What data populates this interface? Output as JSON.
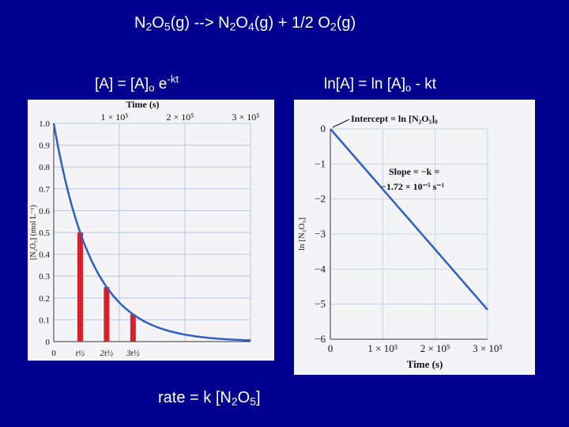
{
  "header": {
    "lhs": [
      "N",
      "2",
      "O",
      "5",
      "(g) --> N",
      "2",
      "O",
      "4",
      "(g) + 1/2 O",
      "2",
      "(g)"
    ]
  },
  "formulas": {
    "left": [
      "[A] = [A]",
      "o",
      " e",
      "-kt"
    ],
    "right": [
      "ln[A] = ln [A]",
      "o",
      " - kt"
    ],
    "bottom": [
      "rate = k [N",
      "2",
      "O",
      "5",
      "]"
    ]
  },
  "chart_data": [
    {
      "type": "line",
      "top_axis_label": "Time (s)",
      "top_ticks": [
        {
          "value": 100000,
          "label": "1 × 10⁵"
        },
        {
          "value": 200000,
          "label": "2 × 10⁵"
        },
        {
          "value": 300000,
          "label": "3 × 10⁵"
        }
      ],
      "ylabel": "[N₂O₅] (mol L⁻¹)",
      "ylim": [
        0,
        1.0
      ],
      "yticks": [
        {
          "value": 0,
          "label": "0"
        },
        {
          "value": 0.1,
          "label": "0.1"
        },
        {
          "value": 0.2,
          "label": "0.2"
        },
        {
          "value": 0.3,
          "label": "0.3"
        },
        {
          "value": 0.4,
          "label": "0.4"
        },
        {
          "value": 0.5,
          "label": "0.5"
        },
        {
          "value": 0.6,
          "label": "0.6"
        },
        {
          "value": 0.7,
          "label": "0.7"
        },
        {
          "value": 0.8,
          "label": "0.8"
        },
        {
          "value": 0.9,
          "label": "0.9"
        },
        {
          "value": 1.0,
          "label": "1.0"
        }
      ],
      "xlim": [
        0,
        300000
      ],
      "bottom_ticks": [
        {
          "value": 0,
          "label": "0"
        },
        {
          "value": 40300,
          "label": "t½"
        },
        {
          "value": 80600,
          "label": "2t½"
        },
        {
          "value": 120900,
          "label": "3t½"
        }
      ],
      "curve": {
        "a0": 1.0,
        "k": 1.72e-05,
        "color": "#2f5fc0"
      },
      "bars": [
        {
          "x": 40300,
          "value": 0.5
        },
        {
          "x": 80600,
          "value": 0.25
        },
        {
          "x": 120900,
          "value": 0.125
        }
      ],
      "bar_color": "#d8202a",
      "grid": true
    },
    {
      "type": "line",
      "xlabel": "Time (s)",
      "ylabel": "ln [N₂O₅]",
      "xlim": [
        0,
        300000
      ],
      "ylim": [
        -6,
        0
      ],
      "xticks": [
        {
          "value": 0,
          "label": "0"
        },
        {
          "value": 100000,
          "label": "1 × 10⁵"
        },
        {
          "value": 200000,
          "label": "2 × 10⁵"
        },
        {
          "value": 300000,
          "label": "3 × 10⁵"
        }
      ],
      "yticks": [
        {
          "value": 0,
          "label": "0"
        },
        {
          "value": -1,
          "label": "−1"
        },
        {
          "value": -2,
          "label": "−2"
        },
        {
          "value": -3,
          "label": "−3"
        },
        {
          "value": -4,
          "label": "−4"
        },
        {
          "value": -5,
          "label": "−5"
        },
        {
          "value": -6,
          "label": "−6"
        }
      ],
      "line": {
        "intercept": 0,
        "slope": -1.72e-05,
        "color": "#2f5fc0"
      },
      "annotations": {
        "intercept": "Intercept = ln [N₂O₅]₀",
        "slope_line1": "Slope = −k =",
        "slope_line2": "−1.72 × 10⁻⁵ s⁻¹"
      },
      "grid": true
    }
  ]
}
